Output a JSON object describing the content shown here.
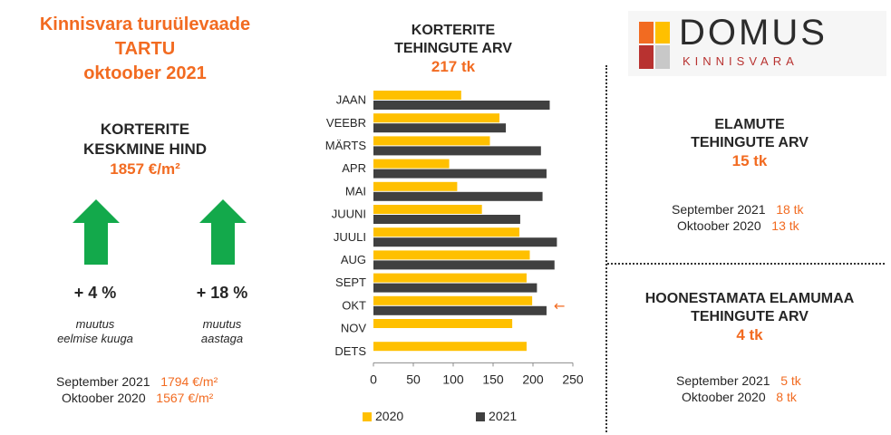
{
  "header": {
    "title_line1": "Kinnisvara turuülevaade",
    "title_line2": "TARTU",
    "title_line3": "oktoober 2021"
  },
  "apartment_price": {
    "label_line1": "KORTERITE",
    "label_line2": "KESKMINE HIND",
    "value": "1857 €/m²",
    "monthly_change": "+ 4 %",
    "monthly_caption_line1": "muutus",
    "monthly_caption_line2": "eelmise kuuga",
    "yearly_change": "+ 18 %",
    "yearly_caption_line1": "muutus",
    "yearly_caption_line2": "aastaga",
    "comparisons": [
      {
        "period": "September 2021",
        "value": "1794 €/m²"
      },
      {
        "period": "Oktoober 2020",
        "value": "1567 €/m²"
      }
    ]
  },
  "apartment_transactions": {
    "title_line1": "KORTERITE",
    "title_line2": "TEHINGUTE ARV",
    "total": "217 tk"
  },
  "houses": {
    "title_line1": "ELAMUTE",
    "title_line2": "TEHINGUTE ARV",
    "total": "15 tk",
    "comparisons": [
      {
        "period": "September 2021",
        "value": "18 tk"
      },
      {
        "period": "Oktoober 2020",
        "value": "13 tk"
      }
    ]
  },
  "land": {
    "title_line1": "HOONESTAMATA ELAMUMAA",
    "title_line2": "TEHINGUTE ARV",
    "total": "4 tk",
    "comparisons": [
      {
        "period": "September 2021",
        "value": "5 tk"
      },
      {
        "period": "Oktoober 2020",
        "value": "8 tk"
      }
    ]
  },
  "logo": {
    "name": "DOMUS",
    "sub": "KINNISVARA"
  },
  "colors": {
    "accent": "#f26b21",
    "up_arrow": "#13a94b",
    "series_2020": "#ffc000",
    "series_2021": "#404040",
    "logo_red": "#b83230"
  },
  "chart_data": {
    "type": "bar",
    "orientation": "horizontal",
    "categories": [
      "JAAN",
      "VEEBR",
      "MÄRTS",
      "APR",
      "MAI",
      "JUUNI",
      "JUULI",
      "AUG",
      "SEPT",
      "OKT",
      "NOV",
      "DETS"
    ],
    "series": [
      {
        "name": "2020",
        "values": [
          110,
          158,
          146,
          95,
          105,
          136,
          183,
          196,
          192,
          199,
          174,
          192
        ]
      },
      {
        "name": "2021",
        "values": [
          221,
          166,
          210,
          217,
          212,
          184,
          230,
          227,
          205,
          217,
          null,
          null
        ]
      }
    ],
    "xlim": [
      0,
      250
    ],
    "xticks": [
      0,
      50,
      100,
      150,
      200,
      250
    ],
    "legend_position": "bottom",
    "grid": false,
    "highlight": {
      "category": "OKT",
      "marker": "←"
    }
  }
}
